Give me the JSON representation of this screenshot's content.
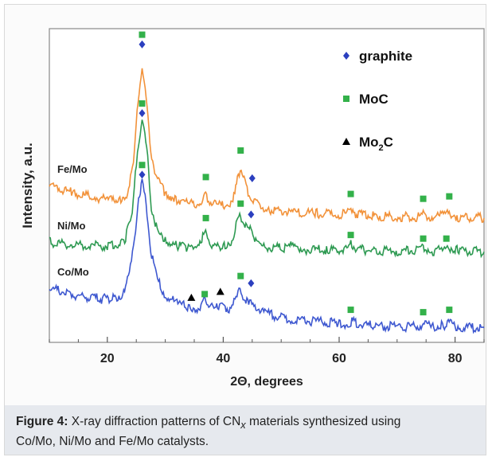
{
  "chart_data": {
    "type": "line",
    "xlabel": "2Θ, degrees",
    "ylabel": "Intensity, a.u.",
    "xlim": [
      10,
      85
    ],
    "x_ticks": [
      20,
      40,
      60,
      80
    ],
    "y_ticks_labeled": false,
    "grid": false,
    "legend": {
      "placement": "top-right",
      "entries": [
        {
          "marker": "diamond",
          "color": "#2b3fbf",
          "label": "graphite"
        },
        {
          "marker": "square",
          "color": "#33b14a",
          "label": "MoC"
        },
        {
          "marker": "triangle",
          "color": "#000000",
          "label": "Mo2C"
        }
      ]
    },
    "series": [
      {
        "name": "Fe/Mo",
        "color": "#f2923a",
        "x": [
          10,
          14,
          18,
          20,
          22,
          23.5,
          24.5,
          25.3,
          26,
          26.7,
          27.5,
          28.5,
          30,
          32,
          34,
          35.5,
          36.3,
          36.8,
          37.3,
          38.2,
          39.5,
          41,
          42,
          42.6,
          43.1,
          43.6,
          44.3,
          45,
          46,
          48,
          52,
          56,
          60,
          61.5,
          62.2,
          63,
          66,
          70,
          73.5,
          74.5,
          76,
          78,
          79,
          80.5,
          85
        ],
        "y": [
          0.55,
          0.49,
          0.45,
          0.43,
          0.43,
          0.49,
          0.72,
          1.26,
          1.55,
          1.26,
          0.84,
          0.61,
          0.49,
          0.43,
          0.4,
          0.39,
          0.44,
          0.48,
          0.44,
          0.4,
          0.38,
          0.4,
          0.48,
          0.64,
          0.7,
          0.62,
          0.49,
          0.44,
          0.39,
          0.35,
          0.33,
          0.32,
          0.31,
          0.32,
          0.36,
          0.31,
          0.3,
          0.29,
          0.29,
          0.31,
          0.29,
          0.3,
          0.32,
          0.29,
          0.28
        ],
        "markers": [
          {
            "type": "square",
            "x": 26.0,
            "y": 1.8
          },
          {
            "type": "diamond",
            "x": 26.0,
            "y": 1.72
          },
          {
            "type": "square",
            "x": 37.0,
            "y": 0.62
          },
          {
            "type": "square",
            "x": 43.0,
            "y": 0.84
          },
          {
            "type": "diamond",
            "x": 45.0,
            "y": 0.61
          },
          {
            "type": "square",
            "x": 62.0,
            "y": 0.48
          },
          {
            "type": "square",
            "x": 74.5,
            "y": 0.44
          },
          {
            "type": "square",
            "x": 79.0,
            "y": 0.46
          }
        ]
      },
      {
        "name": "Ni/Mo",
        "color": "#2e9a52",
        "x": [
          10,
          14,
          18,
          21,
          23,
          24.3,
          25.2,
          26,
          26.8,
          27.6,
          28.6,
          30,
          32,
          34,
          35.5,
          36.3,
          36.8,
          37.3,
          38.2,
          40,
          41.5,
          42.4,
          43,
          43.6,
          44.2,
          44.8,
          45.6,
          47,
          50,
          52,
          54,
          58,
          61.5,
          62.2,
          63,
          66,
          70,
          73.5,
          74.5,
          76,
          78,
          79,
          80.5,
          85
        ],
        "y": [
          0.08,
          0.06,
          0.05,
          0.05,
          0.1,
          0.3,
          0.86,
          1.1,
          0.86,
          0.38,
          0.17,
          0.09,
          0.05,
          0.04,
          0.05,
          0.12,
          0.16,
          0.12,
          0.05,
          0.05,
          0.1,
          0.24,
          0.3,
          0.25,
          0.17,
          0.2,
          0.09,
          0.04,
          0.03,
          0.05,
          0.02,
          0.02,
          0.02,
          0.07,
          0.02,
          0.01,
          0.01,
          0.01,
          0.04,
          0.01,
          0.01,
          0.04,
          0.01,
          0.0
        ],
        "markers": [
          {
            "type": "square",
            "x": 26.0,
            "y": 1.23
          },
          {
            "type": "diamond",
            "x": 26.0,
            "y": 1.15
          },
          {
            "type": "square",
            "x": 37.0,
            "y": 0.28
          },
          {
            "type": "square",
            "x": 43.0,
            "y": 0.4
          },
          {
            "type": "diamond",
            "x": 44.8,
            "y": 0.31
          },
          {
            "type": "square",
            "x": 62.0,
            "y": 0.14
          },
          {
            "type": "square",
            "x": 74.5,
            "y": 0.11
          },
          {
            "type": "square",
            "x": 78.5,
            "y": 0.11
          }
        ]
      },
      {
        "name": "Co/Mo",
        "color": "#3e58d0",
        "x": [
          10,
          13,
          16,
          19,
          21,
          22.5,
          23.8,
          24.7,
          25.4,
          26,
          26.7,
          27.5,
          28.5,
          30,
          32,
          34,
          35.5,
          36.5,
          37,
          37.5,
          38.4,
          39.2,
          39.6,
          40,
          41,
          42.2,
          42.9,
          43.6,
          44.4,
          45.3,
          46.5,
          48,
          52,
          56,
          60,
          61.5,
          62.2,
          63,
          66,
          70,
          73.5,
          74.5,
          76,
          78,
          79,
          80.5,
          85
        ],
        "y": [
          -0.3,
          -0.34,
          -0.37,
          -0.39,
          -0.39,
          -0.35,
          -0.2,
          0.1,
          0.45,
          0.58,
          0.4,
          0.02,
          -0.22,
          -0.36,
          -0.43,
          -0.46,
          -0.47,
          -0.42,
          -0.4,
          -0.43,
          -0.48,
          -0.45,
          -0.4,
          -0.45,
          -0.47,
          -0.4,
          -0.32,
          -0.37,
          -0.44,
          -0.43,
          -0.49,
          -0.52,
          -0.56,
          -0.58,
          -0.59,
          -0.6,
          -0.57,
          -0.6,
          -0.61,
          -0.62,
          -0.62,
          -0.6,
          -0.62,
          -0.61,
          -0.59,
          -0.62,
          -0.63
        ],
        "markers": [
          {
            "type": "square",
            "x": 26.0,
            "y": 0.72
          },
          {
            "type": "diamond",
            "x": 26.0,
            "y": 0.64
          },
          {
            "type": "triangle",
            "x": 34.5,
            "y": -0.38
          },
          {
            "type": "square",
            "x": 36.8,
            "y": -0.35
          },
          {
            "type": "triangle",
            "x": 39.5,
            "y": -0.33
          },
          {
            "type": "square",
            "x": 43.0,
            "y": -0.2
          },
          {
            "type": "diamond",
            "x": 44.8,
            "y": -0.26
          },
          {
            "type": "square",
            "x": 62.0,
            "y": -0.48
          },
          {
            "type": "square",
            "x": 74.5,
            "y": -0.5
          },
          {
            "type": "square",
            "x": 79.0,
            "y": -0.48
          }
        ]
      }
    ]
  },
  "caption": {
    "label": "Figure 4:",
    "text_line1": " X-ray diffraction patterns of CN",
    "subscript": "x",
    "text_line1_end": " materials synthesized using",
    "text_line2": "Co/Mo, Ni/Mo and Fe/Mo catalysts."
  },
  "colors": {
    "graphite": "#2b3fbf",
    "moc": "#33b14a",
    "mo2c": "#000000",
    "caption_bg": "#e6e9ee"
  }
}
